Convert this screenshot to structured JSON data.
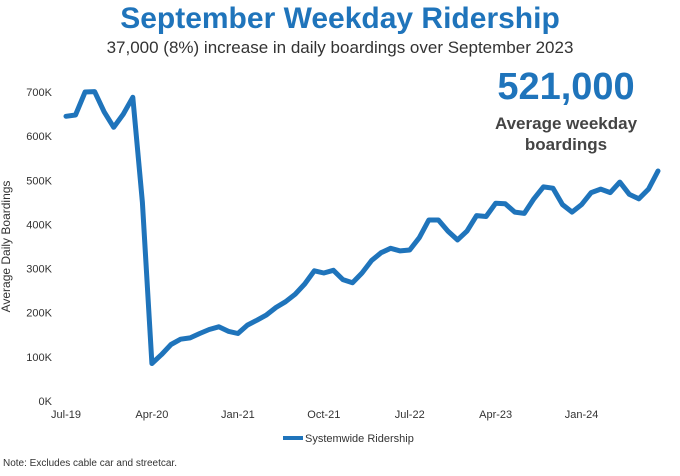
{
  "chart_data": {
    "type": "line",
    "title": "September Weekday Ridership",
    "subtitle": "37,000 (8%) increase in daily boardings over September 2023",
    "callout_value": "521,000",
    "callout_label_line1": "Average weekday",
    "callout_label_line2": "boardings",
    "ylabel": "Average Daily Boardings",
    "ylim": [
      0,
      700000
    ],
    "yticks": [
      0,
      100000,
      200000,
      300000,
      400000,
      500000,
      600000,
      700000
    ],
    "ytick_labels": [
      "0K",
      "100K",
      "200K",
      "300K",
      "400K",
      "500K",
      "600K",
      "700K"
    ],
    "xtick_labels": [
      "Jul-19",
      "Apr-20",
      "Jan-21",
      "Oct-21",
      "Jul-22",
      "Apr-23",
      "Jan-24"
    ],
    "xtick_index": [
      0,
      9,
      18,
      27,
      36,
      45,
      54
    ],
    "grid": false,
    "legend_position": "bottom",
    "series": [
      {
        "name": "Systemwide Ridership",
        "color": "#1f74bb",
        "values": [
          645000,
          648000,
          700000,
          701000,
          655000,
          620000,
          650000,
          688000,
          450000,
          85000,
          105000,
          128000,
          140000,
          143000,
          153000,
          162000,
          168000,
          158000,
          153000,
          172000,
          183000,
          195000,
          212000,
          225000,
          242000,
          265000,
          295000,
          290000,
          296000,
          275000,
          268000,
          290000,
          318000,
          336000,
          346000,
          340000,
          342000,
          370000,
          410000,
          410000,
          385000,
          365000,
          385000,
          420000,
          418000,
          448000,
          447000,
          428000,
          425000,
          458000,
          485000,
          482000,
          445000,
          428000,
          445000,
          472000,
          480000,
          472000,
          496000,
          468000,
          458000,
          480000,
          521000
        ]
      }
    ]
  },
  "note": "Note: Excludes cable car and streetcar."
}
